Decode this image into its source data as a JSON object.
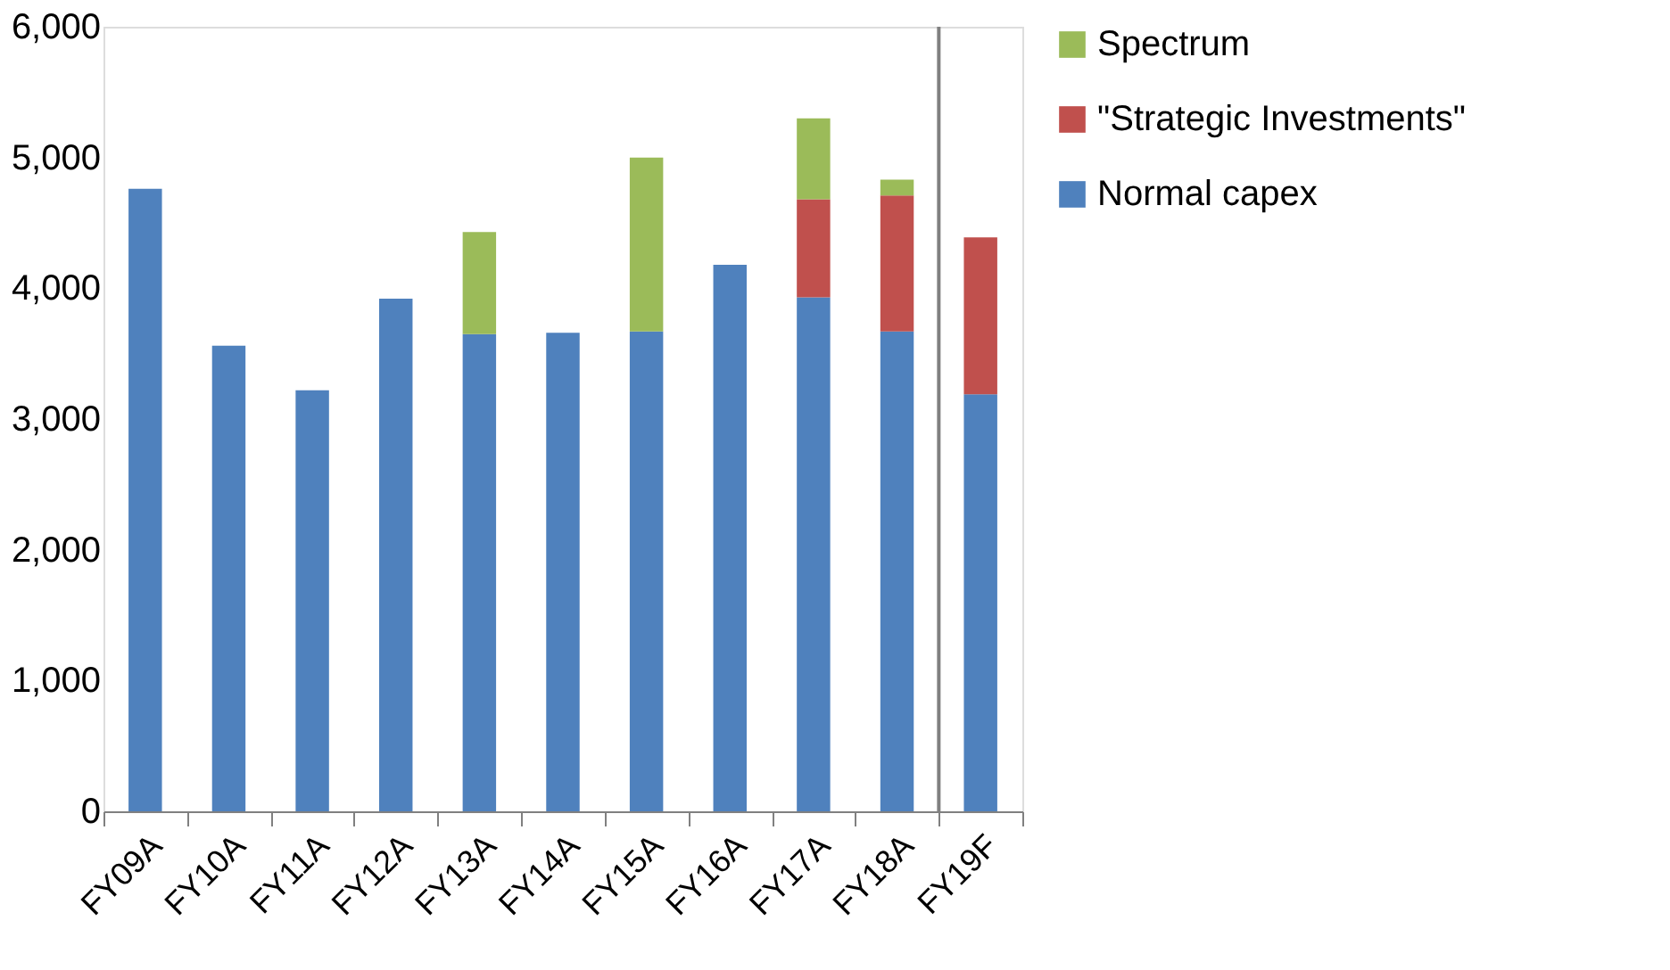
{
  "chart_data": {
    "type": "bar",
    "stacked": true,
    "categories": [
      "FY09A",
      "FY10A",
      "FY11A",
      "FY12A",
      "FY13A",
      "FY14A",
      "FY15A",
      "FY16A",
      "FY17A",
      "FY18A",
      "FY19F"
    ],
    "series": [
      {
        "name": "Normal capex",
        "color": "#4f81bd",
        "values": [
          4760,
          3560,
          3220,
          3920,
          3650,
          3660,
          3670,
          4180,
          3930,
          3670,
          3190
        ]
      },
      {
        "name": "\"Strategic Investments\"",
        "color": "#c0504d",
        "values": [
          null,
          null,
          null,
          null,
          null,
          null,
          null,
          null,
          750,
          1040,
          1200
        ]
      },
      {
        "name": "Spectrum",
        "color": "#9bbb59",
        "values": [
          null,
          null,
          null,
          null,
          780,
          null,
          1330,
          null,
          620,
          120,
          null
        ]
      }
    ],
    "ylim": [
      0,
      6000
    ],
    "yticks": [
      {
        "value": 0,
        "label": "0"
      },
      {
        "value": 1000,
        "label": "1,000"
      },
      {
        "value": 2000,
        "label": "2,000"
      },
      {
        "value": 3000,
        "label": "3,000"
      },
      {
        "value": 4000,
        "label": "4,000"
      },
      {
        "value": 5000,
        "label": "5,000"
      },
      {
        "value": 6000,
        "label": "6,000"
      }
    ],
    "grid": false,
    "legend": "right",
    "ref_lines": [
      {
        "axis": "x",
        "value": "FY19F",
        "color": "#808080"
      }
    ]
  }
}
